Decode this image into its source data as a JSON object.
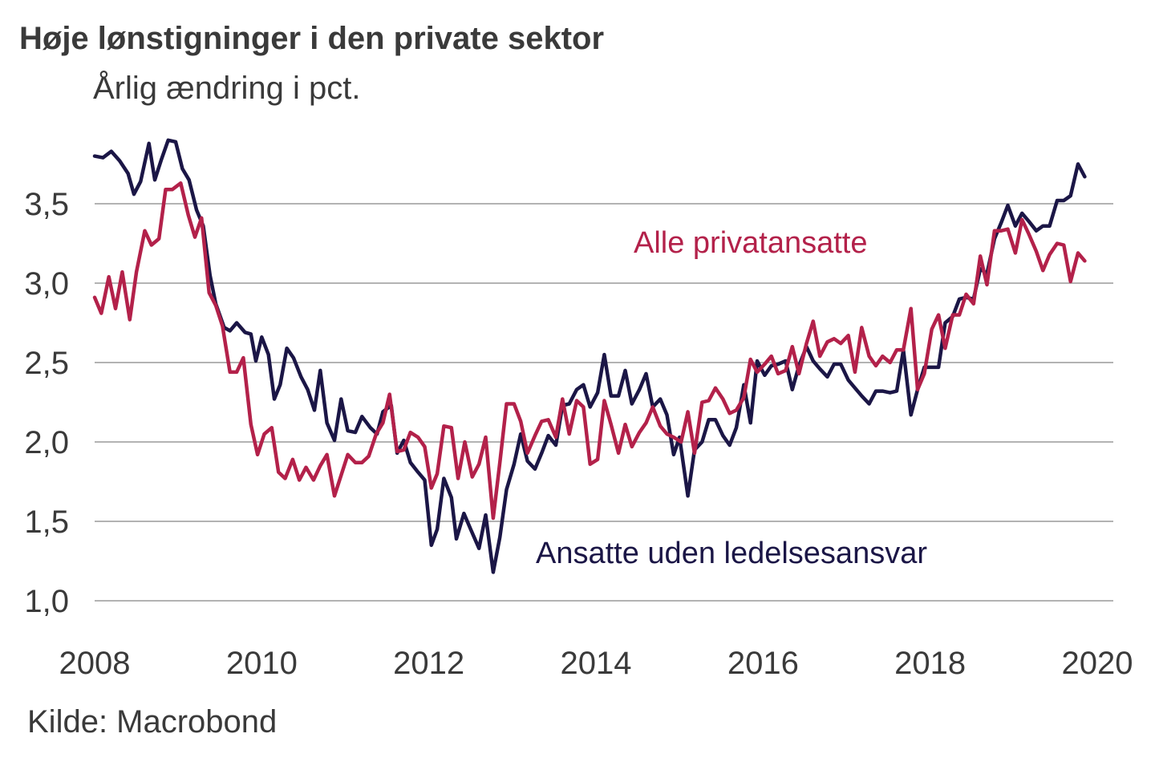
{
  "title": "Høje lønstigninger i den private sektor",
  "subtitle": "Årlig ændring i pct.",
  "source": "Kilde: Macrobond",
  "colors": {
    "alle": "#b3214a",
    "ansatte": "#1b1646",
    "grid": "#9a9a9a"
  },
  "chart_data": {
    "type": "line",
    "title": "Høje lønstigninger i den private sektor",
    "ylabel": "Årlig ændring i pct.",
    "xlabel": "",
    "xlim": [
      2008,
      2020
    ],
    "ylim": [
      1.0,
      4.0
    ],
    "grid": true,
    "yticks": [
      1.0,
      1.5,
      2.0,
      2.5,
      3.0,
      3.5
    ],
    "ytick_labels": [
      "1,0",
      "1,5",
      "2,0",
      "2,5",
      "3,0",
      "3,5"
    ],
    "xticks": [
      2008,
      2010,
      2012,
      2014,
      2016,
      2018,
      2020
    ],
    "xtick_labels": [
      "2008",
      "2010",
      "2012",
      "2014",
      "2016",
      "2018",
      "2020"
    ],
    "series": [
      {
        "name": "Ansatte uden ledelsesansvar",
        "color": "#1b1646",
        "points": [
          [
            2008.0,
            3.8
          ],
          [
            2008.1,
            3.79
          ],
          [
            2008.2,
            3.83
          ],
          [
            2008.3,
            3.77
          ],
          [
            2008.4,
            3.69
          ],
          [
            2008.47,
            3.56
          ],
          [
            2008.55,
            3.64
          ],
          [
            2008.65,
            3.88
          ],
          [
            2008.72,
            3.65
          ],
          [
            2008.8,
            3.78
          ],
          [
            2008.88,
            3.9
          ],
          [
            2008.97,
            3.89
          ],
          [
            2009.05,
            3.72
          ],
          [
            2009.13,
            3.65
          ],
          [
            2009.22,
            3.46
          ],
          [
            2009.3,
            3.36
          ],
          [
            2009.38,
            3.05
          ],
          [
            2009.45,
            2.87
          ],
          [
            2009.55,
            2.72
          ],
          [
            2009.62,
            2.7
          ],
          [
            2009.7,
            2.75
          ],
          [
            2009.8,
            2.69
          ],
          [
            2009.87,
            2.68
          ],
          [
            2009.93,
            2.51
          ],
          [
            2010.0,
            2.66
          ],
          [
            2010.08,
            2.55
          ],
          [
            2010.15,
            2.27
          ],
          [
            2010.22,
            2.36
          ],
          [
            2010.3,
            2.59
          ],
          [
            2010.38,
            2.53
          ],
          [
            2010.47,
            2.41
          ],
          [
            2010.55,
            2.33
          ],
          [
            2010.63,
            2.2
          ],
          [
            2010.7,
            2.45
          ],
          [
            2010.78,
            2.12
          ],
          [
            2010.87,
            2.01
          ],
          [
            2010.95,
            2.27
          ],
          [
            2011.03,
            2.07
          ],
          [
            2011.12,
            2.06
          ],
          [
            2011.2,
            2.16
          ],
          [
            2011.3,
            2.09
          ],
          [
            2011.38,
            2.05
          ],
          [
            2011.45,
            2.19
          ],
          [
            2011.55,
            2.23
          ],
          [
            2011.62,
            1.93
          ],
          [
            2011.7,
            2.01
          ],
          [
            2011.78,
            1.87
          ],
          [
            2011.87,
            1.81
          ],
          [
            2011.95,
            1.76
          ],
          [
            2012.03,
            1.35
          ],
          [
            2012.1,
            1.45
          ],
          [
            2012.18,
            1.77
          ],
          [
            2012.27,
            1.65
          ],
          [
            2012.33,
            1.39
          ],
          [
            2012.42,
            1.55
          ],
          [
            2012.5,
            1.45
          ],
          [
            2012.6,
            1.33
          ],
          [
            2012.68,
            1.54
          ],
          [
            2012.77,
            1.18
          ],
          [
            2012.85,
            1.4
          ],
          [
            2012.93,
            1.7
          ],
          [
            2013.02,
            1.86
          ],
          [
            2013.1,
            2.05
          ],
          [
            2013.18,
            1.88
          ],
          [
            2013.27,
            1.83
          ],
          [
            2013.35,
            1.93
          ],
          [
            2013.43,
            2.04
          ],
          [
            2013.52,
            1.98
          ],
          [
            2013.6,
            2.23
          ],
          [
            2013.68,
            2.24
          ],
          [
            2013.77,
            2.33
          ],
          [
            2013.85,
            2.36
          ],
          [
            2013.93,
            2.22
          ],
          [
            2014.02,
            2.31
          ],
          [
            2014.1,
            2.55
          ],
          [
            2014.18,
            2.29
          ],
          [
            2014.27,
            2.29
          ],
          [
            2014.35,
            2.45
          ],
          [
            2014.43,
            2.24
          ],
          [
            2014.52,
            2.33
          ],
          [
            2014.6,
            2.43
          ],
          [
            2014.68,
            2.22
          ],
          [
            2014.77,
            2.27
          ],
          [
            2014.85,
            2.17
          ],
          [
            2014.93,
            1.92
          ],
          [
            2015.0,
            2.03
          ],
          [
            2015.1,
            1.66
          ],
          [
            2015.18,
            1.95
          ],
          [
            2015.27,
            2.0
          ],
          [
            2015.35,
            2.14
          ],
          [
            2015.43,
            2.14
          ],
          [
            2015.52,
            2.04
          ],
          [
            2015.6,
            1.98
          ],
          [
            2015.68,
            2.09
          ],
          [
            2015.77,
            2.36
          ],
          [
            2015.85,
            2.12
          ],
          [
            2015.93,
            2.51
          ],
          [
            2016.02,
            2.42
          ],
          [
            2016.1,
            2.48
          ],
          [
            2016.18,
            2.49
          ],
          [
            2016.27,
            2.51
          ],
          [
            2016.35,
            2.33
          ],
          [
            2016.43,
            2.48
          ],
          [
            2016.52,
            2.6
          ],
          [
            2016.6,
            2.51
          ],
          [
            2016.68,
            2.46
          ],
          [
            2016.77,
            2.41
          ],
          [
            2016.85,
            2.49
          ],
          [
            2016.93,
            2.49
          ],
          [
            2017.02,
            2.39
          ],
          [
            2017.1,
            2.34
          ],
          [
            2017.18,
            2.29
          ],
          [
            2017.27,
            2.24
          ],
          [
            2017.35,
            2.32
          ],
          [
            2017.43,
            2.32
          ],
          [
            2017.52,
            2.31
          ],
          [
            2017.6,
            2.32
          ],
          [
            2017.68,
            2.58
          ],
          [
            2017.77,
            2.17
          ],
          [
            2017.85,
            2.33
          ],
          [
            2017.93,
            2.47
          ],
          [
            2018.02,
            2.47
          ],
          [
            2018.1,
            2.47
          ],
          [
            2018.18,
            2.75
          ],
          [
            2018.27,
            2.79
          ],
          [
            2018.35,
            2.9
          ],
          [
            2018.43,
            2.91
          ],
          [
            2018.52,
            2.9
          ],
          [
            2018.6,
            3.09
          ],
          [
            2018.68,
            3.06
          ],
          [
            2018.77,
            3.28
          ],
          [
            2018.85,
            3.38
          ],
          [
            2018.93,
            3.49
          ],
          [
            2019.02,
            3.36
          ],
          [
            2019.1,
            3.44
          ],
          [
            2019.18,
            3.39
          ],
          [
            2019.27,
            3.33
          ],
          [
            2019.35,
            3.36
          ],
          [
            2019.43,
            3.36
          ],
          [
            2019.52,
            3.52
          ],
          [
            2019.6,
            3.52
          ],
          [
            2019.68,
            3.55
          ],
          [
            2019.77,
            3.75
          ],
          [
            2019.85,
            3.67
          ]
        ]
      },
      {
        "name": "Alle privatansatte",
        "color": "#b3214a",
        "points": [
          [
            2008.0,
            2.91
          ],
          [
            2008.08,
            2.81
          ],
          [
            2008.17,
            3.04
          ],
          [
            2008.25,
            2.84
          ],
          [
            2008.33,
            3.07
          ],
          [
            2008.42,
            2.77
          ],
          [
            2008.5,
            3.07
          ],
          [
            2008.6,
            3.33
          ],
          [
            2008.68,
            3.24
          ],
          [
            2008.77,
            3.28
          ],
          [
            2008.85,
            3.59
          ],
          [
            2008.93,
            3.59
          ],
          [
            2009.03,
            3.63
          ],
          [
            2009.12,
            3.43
          ],
          [
            2009.2,
            3.29
          ],
          [
            2009.28,
            3.41
          ],
          [
            2009.37,
            2.94
          ],
          [
            2009.45,
            2.86
          ],
          [
            2009.53,
            2.73
          ],
          [
            2009.62,
            2.44
          ],
          [
            2009.7,
            2.44
          ],
          [
            2009.78,
            2.53
          ],
          [
            2009.87,
            2.11
          ],
          [
            2009.95,
            1.92
          ],
          [
            2010.03,
            2.05
          ],
          [
            2010.12,
            2.09
          ],
          [
            2010.2,
            1.81
          ],
          [
            2010.28,
            1.77
          ],
          [
            2010.37,
            1.89
          ],
          [
            2010.45,
            1.76
          ],
          [
            2010.53,
            1.84
          ],
          [
            2010.62,
            1.76
          ],
          [
            2010.7,
            1.85
          ],
          [
            2010.78,
            1.92
          ],
          [
            2010.87,
            1.66
          ],
          [
            2010.95,
            1.79
          ],
          [
            2011.03,
            1.92
          ],
          [
            2011.12,
            1.87
          ],
          [
            2011.2,
            1.87
          ],
          [
            2011.28,
            1.91
          ],
          [
            2011.37,
            2.05
          ],
          [
            2011.45,
            2.12
          ],
          [
            2011.53,
            2.3
          ],
          [
            2011.62,
            1.94
          ],
          [
            2011.7,
            1.95
          ],
          [
            2011.78,
            2.06
          ],
          [
            2011.87,
            2.03
          ],
          [
            2011.95,
            1.97
          ],
          [
            2012.03,
            1.71
          ],
          [
            2012.1,
            1.8
          ],
          [
            2012.18,
            2.1
          ],
          [
            2012.27,
            2.09
          ],
          [
            2012.35,
            1.77
          ],
          [
            2012.43,
            2.0
          ],
          [
            2012.52,
            1.78
          ],
          [
            2012.6,
            1.86
          ],
          [
            2012.68,
            2.03
          ],
          [
            2012.77,
            1.52
          ],
          [
            2012.85,
            1.87
          ],
          [
            2012.93,
            2.24
          ],
          [
            2013.02,
            2.24
          ],
          [
            2013.1,
            2.13
          ],
          [
            2013.18,
            1.93
          ],
          [
            2013.27,
            2.04
          ],
          [
            2013.35,
            2.13
          ],
          [
            2013.43,
            2.14
          ],
          [
            2013.52,
            2.03
          ],
          [
            2013.6,
            2.27
          ],
          [
            2013.68,
            2.05
          ],
          [
            2013.77,
            2.26
          ],
          [
            2013.85,
            2.22
          ],
          [
            2013.93,
            1.86
          ],
          [
            2014.02,
            1.89
          ],
          [
            2014.1,
            2.26
          ],
          [
            2014.18,
            2.11
          ],
          [
            2014.27,
            1.93
          ],
          [
            2014.35,
            2.11
          ],
          [
            2014.43,
            1.97
          ],
          [
            2014.52,
            2.06
          ],
          [
            2014.6,
            2.12
          ],
          [
            2014.68,
            2.22
          ],
          [
            2014.77,
            2.1
          ],
          [
            2014.85,
            2.05
          ],
          [
            2014.93,
            2.03
          ],
          [
            2015.02,
            2.0
          ],
          [
            2015.1,
            2.19
          ],
          [
            2015.18,
            1.93
          ],
          [
            2015.27,
            2.25
          ],
          [
            2015.35,
            2.26
          ],
          [
            2015.43,
            2.34
          ],
          [
            2015.52,
            2.27
          ],
          [
            2015.6,
            2.18
          ],
          [
            2015.68,
            2.2
          ],
          [
            2015.77,
            2.28
          ],
          [
            2015.85,
            2.52
          ],
          [
            2015.93,
            2.44
          ],
          [
            2016.02,
            2.49
          ],
          [
            2016.1,
            2.54
          ],
          [
            2016.18,
            2.43
          ],
          [
            2016.27,
            2.45
          ],
          [
            2016.35,
            2.6
          ],
          [
            2016.43,
            2.43
          ],
          [
            2016.52,
            2.62
          ],
          [
            2016.6,
            2.76
          ],
          [
            2016.68,
            2.54
          ],
          [
            2016.77,
            2.63
          ],
          [
            2016.85,
            2.65
          ],
          [
            2016.93,
            2.62
          ],
          [
            2017.02,
            2.67
          ],
          [
            2017.1,
            2.44
          ],
          [
            2017.18,
            2.72
          ],
          [
            2017.27,
            2.54
          ],
          [
            2017.35,
            2.48
          ],
          [
            2017.43,
            2.54
          ],
          [
            2017.52,
            2.5
          ],
          [
            2017.6,
            2.58
          ],
          [
            2017.68,
            2.58
          ],
          [
            2017.77,
            2.84
          ],
          [
            2017.85,
            2.33
          ],
          [
            2017.93,
            2.43
          ],
          [
            2018.02,
            2.71
          ],
          [
            2018.1,
            2.8
          ],
          [
            2018.18,
            2.59
          ],
          [
            2018.27,
            2.8
          ],
          [
            2018.35,
            2.8
          ],
          [
            2018.43,
            2.93
          ],
          [
            2018.52,
            2.87
          ],
          [
            2018.6,
            3.17
          ],
          [
            2018.68,
            2.99
          ],
          [
            2018.77,
            3.33
          ],
          [
            2018.85,
            3.33
          ],
          [
            2018.93,
            3.34
          ],
          [
            2019.02,
            3.19
          ],
          [
            2019.1,
            3.4
          ],
          [
            2019.18,
            3.31
          ],
          [
            2019.27,
            3.2
          ],
          [
            2019.35,
            3.08
          ],
          [
            2019.43,
            3.18
          ],
          [
            2019.52,
            3.25
          ],
          [
            2019.6,
            3.24
          ],
          [
            2019.68,
            3.01
          ],
          [
            2019.77,
            3.19
          ],
          [
            2019.85,
            3.14
          ]
        ]
      }
    ],
    "annotations": [
      {
        "text": "Alle privatansatte",
        "series": "Alle privatansatte"
      },
      {
        "text": "Ansatte uden ledelsesansvar",
        "series": "Ansatte uden ledelsesansvar"
      }
    ]
  }
}
